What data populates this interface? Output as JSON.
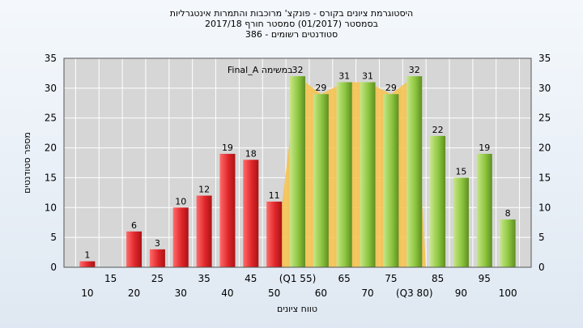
{
  "titles": [
    "היסטוגרמת ציונים בקורס - פונקצ' מרוכבות והתמרות אינטגרליות",
    "בסמסטר  (01/2017)  סמסטר חורף  2017/18",
    "סטודנטים רשומים - 386"
  ],
  "colors": {
    "below_pass": "#e0262a",
    "above_pass": "#8dc63f",
    "area": "#f7c24a",
    "plot_bg": "#d6d6d6",
    "grid": "#ffffff"
  },
  "chart_data": {
    "type": "bar",
    "xlabel": "טווח ציונים",
    "ylabel": "מספר סטודנטים",
    "ylim": [
      0,
      35
    ],
    "yticks": [
      0,
      5,
      10,
      15,
      20,
      25,
      30,
      35
    ],
    "grid": true,
    "categories": [
      "10",
      "15",
      "20",
      "25",
      "30",
      "35",
      "40",
      "45",
      "50",
      "(Q1 55)",
      "60",
      "65",
      "70",
      "75",
      "(Q3 80)",
      "85",
      "90",
      "95",
      "100"
    ],
    "values": [
      1,
      0,
      6,
      3,
      10,
      12,
      19,
      18,
      11,
      32,
      29,
      31,
      31,
      29,
      32,
      22,
      15,
      19,
      8
    ],
    "value_labels": [
      "1",
      "",
      "6",
      "3",
      "10",
      "12",
      "19",
      "18",
      "11",
      "32",
      "29",
      "31",
      "31",
      "29",
      "32",
      "22",
      "15",
      "19",
      "8"
    ],
    "pass_from_index": 9,
    "highlight_series": {
      "name": "Final_A במשימה",
      "from_index": 9,
      "to_index": 14
    }
  }
}
